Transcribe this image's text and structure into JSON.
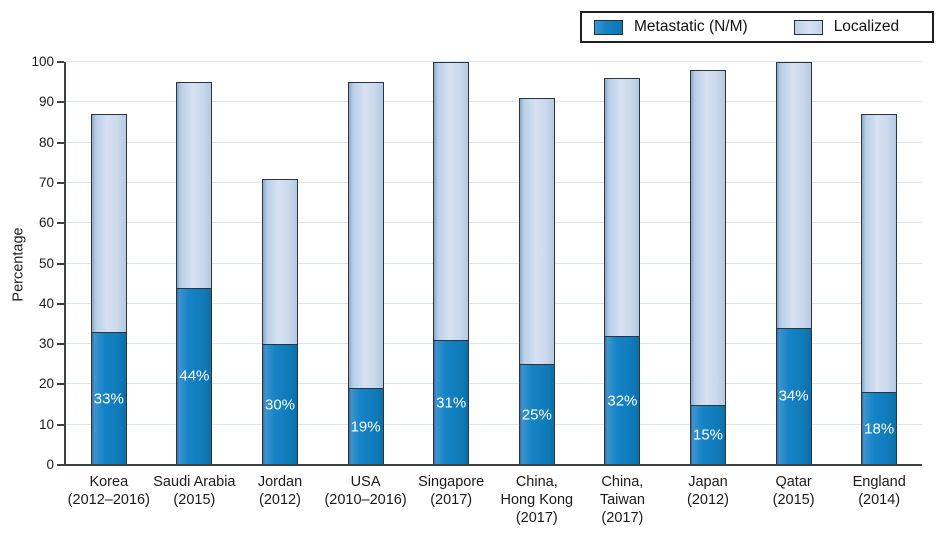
{
  "figure": {
    "background": "#ffffff"
  },
  "legend": {
    "position": "top-right",
    "items": [
      {
        "label": "Metastatic (N/M)",
        "swatch_color": "#1583c6"
      },
      {
        "label": "Localized",
        "swatch_color": "#cfdeef"
      }
    ]
  },
  "chart_data": {
    "type": "bar",
    "variant": "stacked-vertical",
    "title": "",
    "xlabel": "",
    "ylabel": "Percentage",
    "ylim": [
      0,
      100
    ],
    "yticks": [
      0,
      10,
      20,
      30,
      40,
      50,
      60,
      70,
      80,
      90,
      100
    ],
    "grid": true,
    "legend_position": "top-right",
    "categories": [
      "Korea (2012–2016)",
      "Saudi Arabia (2015)",
      "Jordan (2012)",
      "USA (2010–2016)",
      "Singapore (2017)",
      "China, Hong Kong (2017)",
      "China, Taiwan (2017)",
      "Japan (2012)",
      "Qatar (2015)",
      "England (2014)"
    ],
    "category_lines": [
      [
        "Korea",
        "(2012–2016)"
      ],
      [
        "Saudi Arabia",
        "(2015)"
      ],
      [
        "Jordan",
        "(2012)"
      ],
      [
        "USA",
        "(2010–2016)"
      ],
      [
        "Singapore",
        "(2017)"
      ],
      [
        "China,",
        "Hong Kong",
        "(2017)"
      ],
      [
        "China,",
        "Taiwan",
        "(2017)"
      ],
      [
        "Japan",
        "(2012)"
      ],
      [
        "Qatar",
        "(2015)"
      ],
      [
        "England",
        "(2014)"
      ]
    ],
    "series": [
      {
        "name": "Metastatic (N/M)",
        "color": "#1583c6",
        "values": [
          33,
          44,
          30,
          19,
          31,
          25,
          32,
          15,
          34,
          18
        ],
        "bar_labels": [
          "33%",
          "44%",
          "30%",
          "19%",
          "31%",
          "25%",
          "32%",
          "15%",
          "34%",
          "18%"
        ]
      },
      {
        "name": "Localized",
        "color": "#cfdeef",
        "values": [
          54,
          51,
          41,
          76,
          69,
          66,
          64,
          83,
          66,
          69
        ],
        "bar_labels": []
      }
    ],
    "stack_totals": [
      87,
      95,
      71,
      95,
      100,
      91,
      96,
      98,
      100,
      87
    ]
  }
}
